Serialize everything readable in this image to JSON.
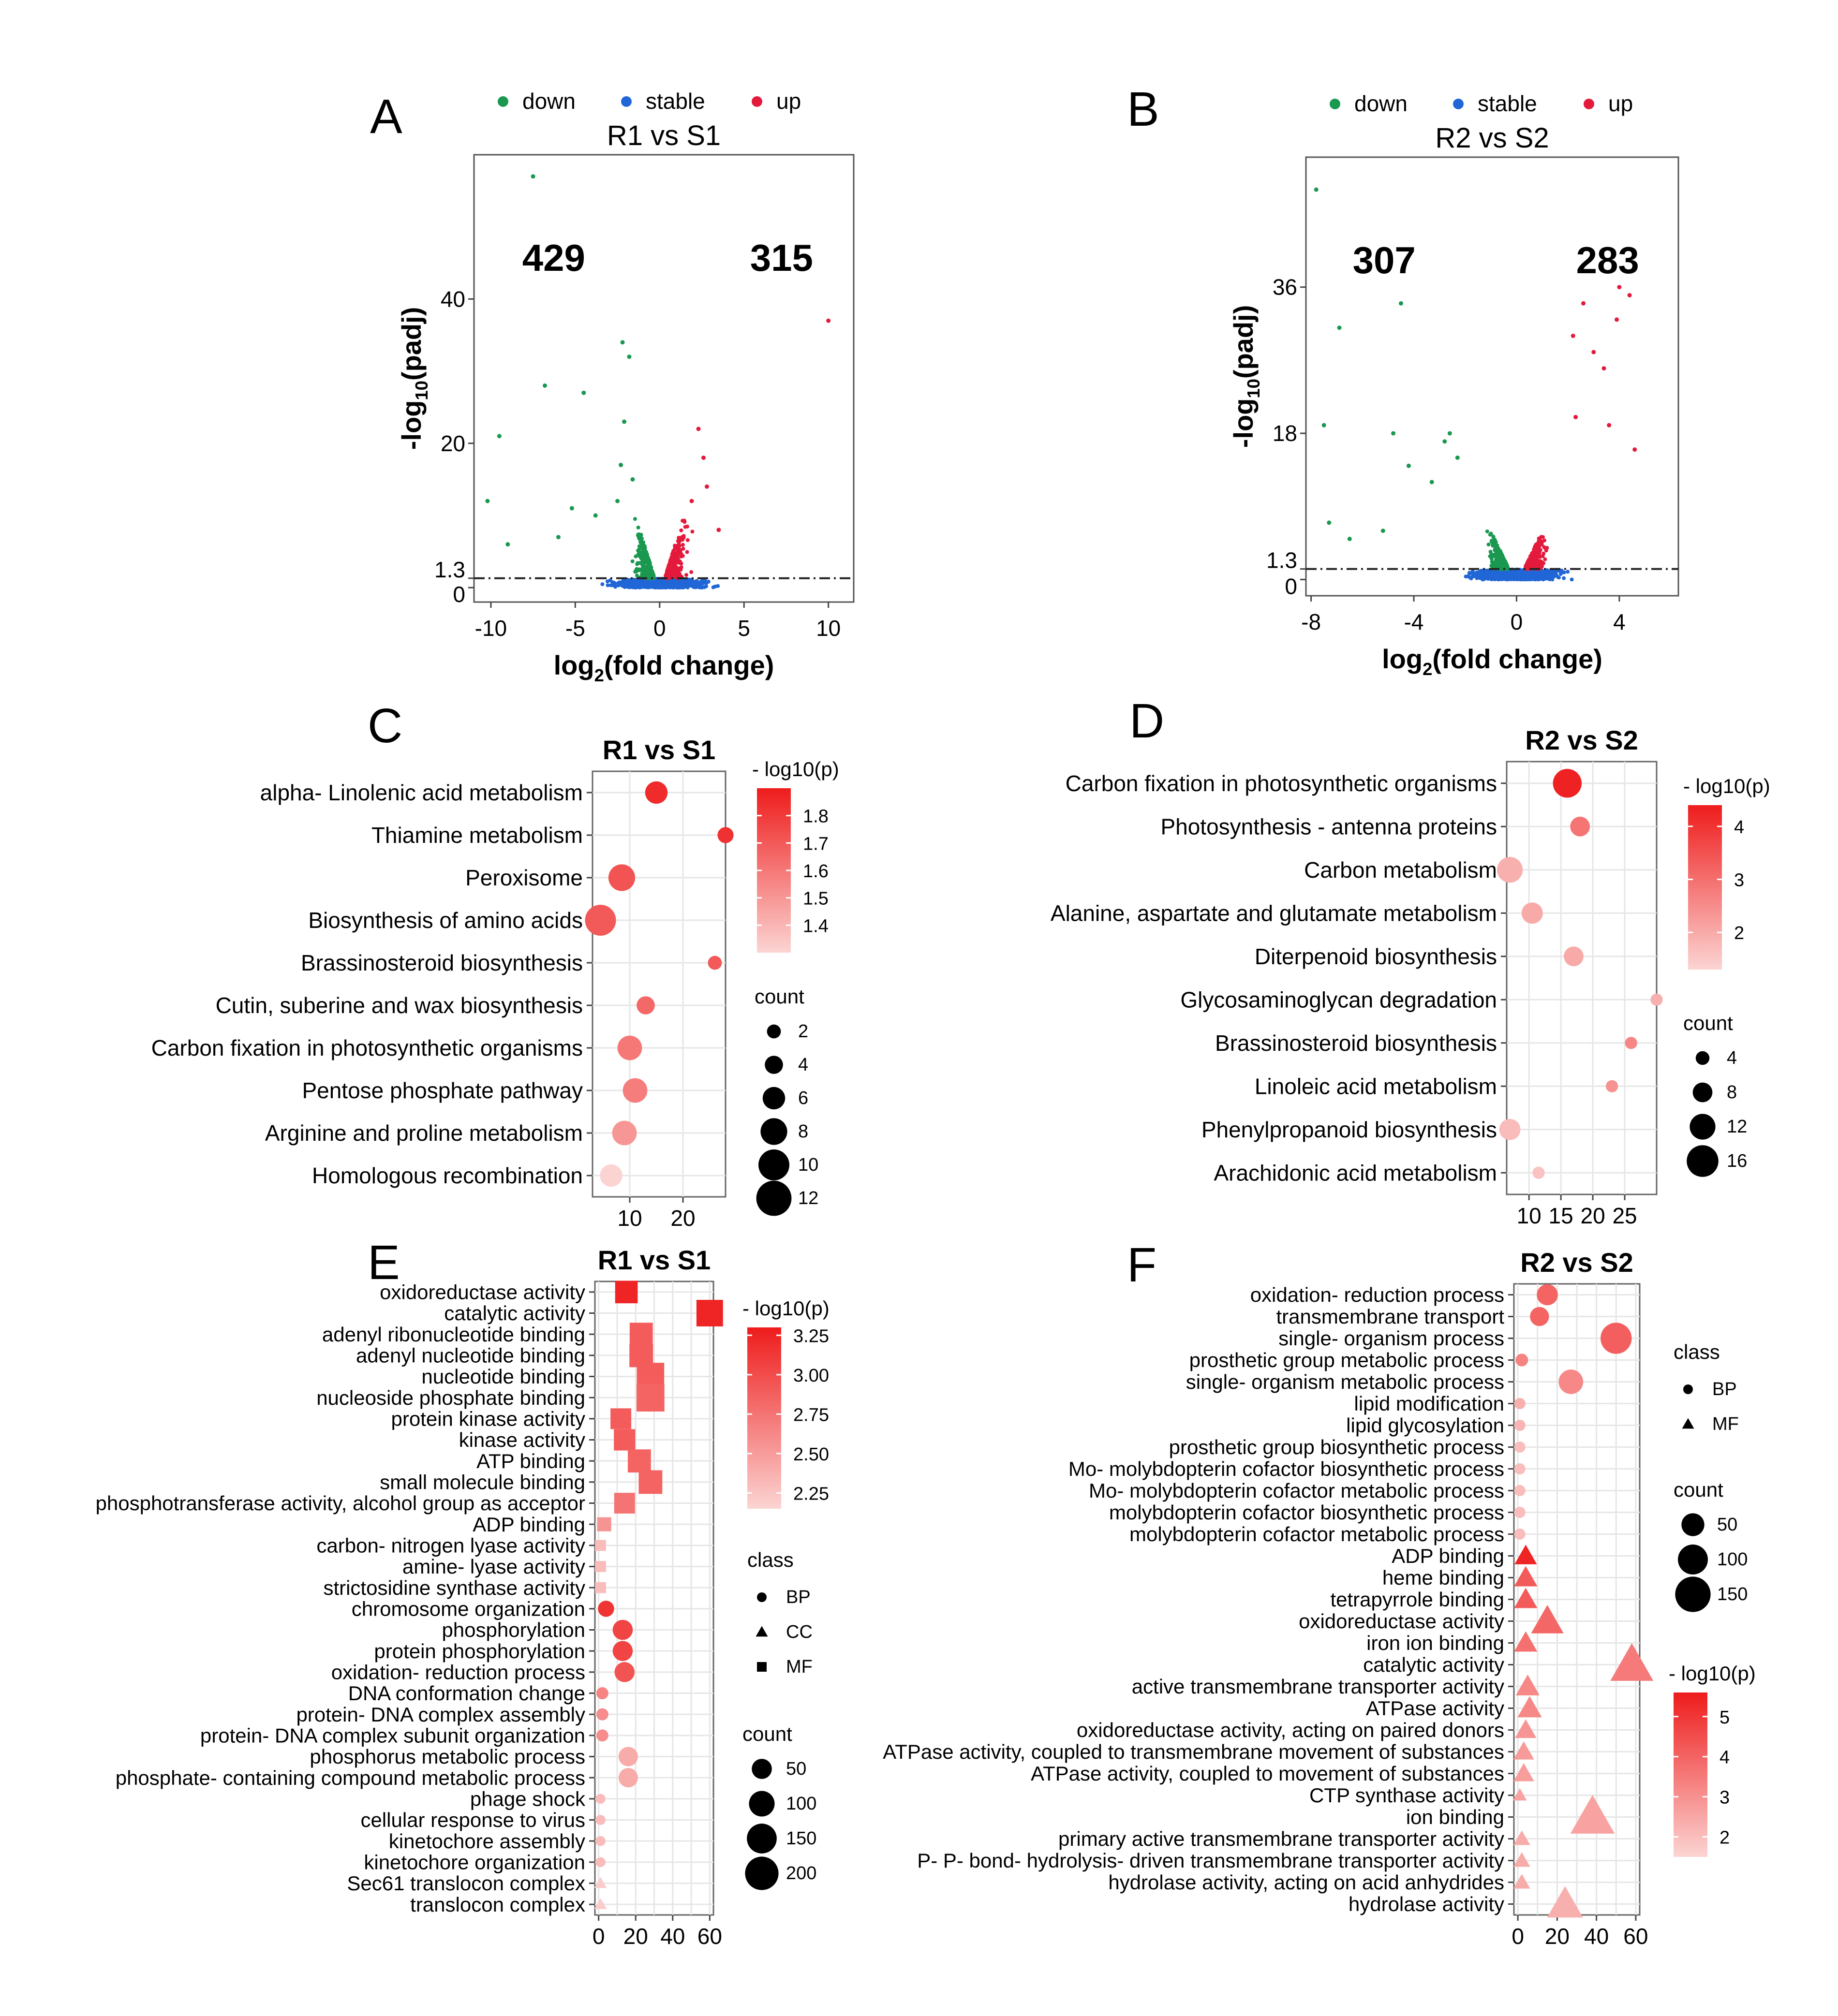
{
  "chart_data": [
    {
      "panel": "A",
      "type": "scatter",
      "title": "R1 vs S1",
      "xlabel": "log2(fold change)",
      "ylabel": "-log10(padj)",
      "xlim": [
        -11,
        11.5
      ],
      "ylim": [
        -2,
        60
      ],
      "x_ticks": [
        "-10",
        "-5",
        "0",
        "5",
        "10"
      ],
      "x_tick_values": [
        -10,
        -5,
        0,
        5,
        10
      ],
      "y_ticks": [
        "0",
        "1.3",
        "20",
        "40"
      ],
      "y_tick_values": [
        0,
        1.3,
        20,
        40
      ],
      "threshold": 1.3,
      "legend": [
        {
          "label": "down",
          "color": "#1a9850"
        },
        {
          "label": "stable",
          "color": "#2166d6"
        },
        {
          "label": "up",
          "color": "#e41a3c"
        }
      ],
      "annotations": [
        {
          "text": "429",
          "color": "#1a9850"
        },
        {
          "text": "315",
          "color": "#e41a3c"
        }
      ],
      "outliers": {
        "down": [
          [
            -7.5,
            57
          ],
          [
            -2.2,
            34
          ],
          [
            -1.8,
            32
          ],
          [
            -4.5,
            27
          ],
          [
            -6.8,
            28
          ],
          [
            -9.5,
            21
          ],
          [
            -2.1,
            23
          ],
          [
            -2.3,
            17
          ],
          [
            -10.2,
            12
          ],
          [
            -5.2,
            11
          ],
          [
            -3.8,
            10
          ],
          [
            -9,
            6
          ],
          [
            -6,
            7
          ],
          [
            -2.5,
            12
          ],
          [
            -1.6,
            15
          ]
        ],
        "up": [
          [
            10,
            37
          ],
          [
            2.3,
            22
          ],
          [
            2.6,
            18
          ],
          [
            2.8,
            14
          ],
          [
            1.9,
            12
          ],
          [
            3.5,
            8
          ]
        ]
      }
    },
    {
      "panel": "B",
      "type": "scatter",
      "title": "R2 vs S2",
      "xlabel": "log2(fold change)",
      "ylabel": "-log10(padj)",
      "xlim": [
        -8.2,
        6.3
      ],
      "ylim": [
        -2,
        52
      ],
      "x_ticks": [
        "-8",
        "-4",
        "0",
        "4"
      ],
      "x_tick_values": [
        -8,
        -4,
        0,
        4
      ],
      "y_ticks": [
        "0",
        "1.3",
        "18",
        "36"
      ],
      "y_tick_values": [
        0,
        1.3,
        18,
        36
      ],
      "threshold": 1.3,
      "legend": [
        {
          "label": "down",
          "color": "#1a9850"
        },
        {
          "label": "stable",
          "color": "#2166d6"
        },
        {
          "label": "up",
          "color": "#e41a3c"
        }
      ],
      "annotations": [
        {
          "text": "307",
          "color": "#1a9850"
        },
        {
          "text": "283",
          "color": "#e41a3c"
        }
      ],
      "outliers": {
        "down": [
          [
            -7.8,
            48
          ],
          [
            -6.9,
            31
          ],
          [
            -4.5,
            34
          ],
          [
            -7.5,
            19
          ],
          [
            -4.8,
            18
          ],
          [
            -4.2,
            14
          ],
          [
            -2.8,
            17
          ],
          [
            -2.6,
            18
          ],
          [
            -2.3,
            15
          ],
          [
            -3.3,
            12
          ],
          [
            -7.3,
            7
          ],
          [
            -6.5,
            5
          ],
          [
            -5.2,
            6
          ]
        ],
        "up": [
          [
            4,
            36
          ],
          [
            4.4,
            35
          ],
          [
            3.9,
            32
          ],
          [
            2.6,
            34
          ],
          [
            2.2,
            30
          ],
          [
            3,
            28
          ],
          [
            3.4,
            26
          ],
          [
            2.3,
            20
          ],
          [
            3.6,
            19
          ],
          [
            4.6,
            16
          ]
        ]
      }
    },
    {
      "panel": "C",
      "type": "bubble",
      "title": "R1 vs S1",
      "categories": [
        "alpha- Linolenic acid metabolism",
        "Thiamine metabolism",
        "Peroxisome",
        "Biosynthesis of amino acids",
        "Brassinosteroid biosynthesis",
        "Cutin, suberine and wax biosynthesis",
        "Carbon fixation in photosynthetic organisms",
        "Pentose phosphate pathway",
        "Arginine and proline metabolism",
        "Homologous recombination"
      ],
      "x": [
        15,
        28,
        8.5,
        4.5,
        26,
        13,
        10,
        11,
        9,
        6.5
      ],
      "count": [
        6,
        3,
        8,
        10,
        2,
        4,
        7,
        7,
        7,
        6
      ],
      "neglog10p": [
        1.85,
        1.83,
        1.72,
        1.7,
        1.7,
        1.65,
        1.6,
        1.58,
        1.5,
        1.3
      ],
      "xlim": [
        3,
        28
      ],
      "x_ticks": [
        "10",
        "20"
      ],
      "x_tick_values": [
        10,
        20
      ],
      "colorbar": {
        "title": "- log10(p)",
        "min": 1.3,
        "max": 1.9,
        "ticks": [
          "1.4",
          "1.5",
          "1.6",
          "1.7",
          "1.8"
        ],
        "tick_values": [
          1.4,
          1.5,
          1.6,
          1.7,
          1.8
        ]
      },
      "size_legend": {
        "title": "count",
        "values": [
          "2",
          "4",
          "6",
          "8",
          "10",
          "12"
        ]
      }
    },
    {
      "panel": "D",
      "type": "bubble",
      "title": "R2 vs S2",
      "categories": [
        "Carbon fixation in photosynthetic organisms",
        "Photosynthesis -  antenna proteins",
        "Carbon metabolism",
        "Alanine, aspartate and glutamate metabolism",
        "Diterpenoid biosynthesis",
        "Glycosaminoglycan degradation",
        "Brassinosteroid biosynthesis",
        "Linoleic acid metabolism",
        "Phenylpropanoid biosynthesis",
        "Arachidonic acid metabolism"
      ],
      "x": [
        16,
        18,
        7,
        10.5,
        17,
        30,
        26,
        23,
        7,
        11.5
      ],
      "count": [
        14,
        8,
        12,
        9,
        8,
        3,
        3,
        3,
        9,
        3
      ],
      "neglog10p": [
        4.3,
        2.9,
        1.9,
        2.0,
        2.0,
        1.9,
        2.6,
        2.4,
        1.7,
        1.6
      ],
      "xlim": [
        6.5,
        30
      ],
      "x_ticks": [
        "10",
        "15",
        "20",
        "25"
      ],
      "x_tick_values": [
        10,
        15,
        20,
        25
      ],
      "colorbar": {
        "title": "- log10(p)",
        "min": 1.3,
        "max": 4.4,
        "ticks": [
          "2",
          "3",
          "4"
        ],
        "tick_values": [
          2,
          3,
          4
        ]
      },
      "size_legend": {
        "title": "count",
        "values": [
          "4",
          "8",
          "12",
          "16"
        ]
      }
    },
    {
      "panel": "E",
      "type": "bubble",
      "title": "R1 vs S1",
      "categories": [
        "oxidoreductase activity",
        "catalytic activity",
        "adenyl ribonucleotide binding",
        "adenyl nucleotide binding",
        "nucleotide binding",
        "nucleoside phosphate binding",
        "protein kinase activity",
        "kinase activity",
        "ATP binding",
        "small molecule binding",
        "phosphotransferase activity, alcohol group as acceptor",
        "ADP binding",
        "carbon- nitrogen lyase activity",
        "amine- lyase activity",
        "strictosidine synthase activity",
        "chromosome organization",
        "phosphorylation",
        "protein phosphorylation",
        "oxidation- reduction process",
        "DNA conformation change",
        "protein- DNA complex assembly",
        "protein- DNA complex subunit organization",
        "phosphorus metabolic process",
        "phosphate- containing compound metabolic process",
        "phage shock",
        "cellular response to virus",
        "kinetochore assembly",
        "kinetochore organization",
        "Sec61 translocon complex",
        "translocon complex"
      ],
      "x": [
        15,
        60,
        23,
        23,
        28,
        28,
        12,
        14,
        22,
        28,
        14,
        3,
        1,
        1,
        1,
        4,
        13,
        13,
        14,
        2,
        2,
        2,
        16,
        16,
        1,
        1,
        1,
        1,
        1,
        1
      ],
      "count": [
        70,
        110,
        75,
        80,
        120,
        125,
        55,
        60,
        75,
        80,
        55,
        15,
        5,
        5,
        5,
        25,
        50,
        50,
        50,
        8,
        8,
        8,
        45,
        45,
        3,
        3,
        3,
        3,
        3,
        3
      ],
      "neglog10p": [
        3.25,
        3.25,
        2.9,
        2.9,
        2.9,
        2.85,
        2.9,
        2.9,
        2.85,
        2.85,
        2.75,
        2.55,
        2.3,
        2.3,
        2.3,
        3.15,
        3.05,
        3.05,
        2.95,
        2.65,
        2.6,
        2.6,
        2.4,
        2.4,
        2.3,
        2.3,
        2.3,
        2.3,
        2.2,
        2.2
      ],
      "class": [
        "MF",
        "MF",
        "MF",
        "MF",
        "MF",
        "MF",
        "MF",
        "MF",
        "MF",
        "MF",
        "MF",
        "MF",
        "MF",
        "MF",
        "MF",
        "BP",
        "BP",
        "BP",
        "BP",
        "BP",
        "BP",
        "BP",
        "BP",
        "BP",
        "BP",
        "BP",
        "BP",
        "BP",
        "CC",
        "CC"
      ],
      "xlim": [
        -2,
        62
      ],
      "x_ticks": [
        "0",
        "20",
        "40",
        "60"
      ],
      "x_tick_values": [
        0,
        20,
        40,
        60
      ],
      "colorbar": {
        "title": "- log10(p)",
        "min": 2.15,
        "max": 3.3,
        "ticks": [
          "2.25",
          "2.50",
          "2.75",
          "3.00",
          "3.25"
        ],
        "tick_values": [
          2.25,
          2.5,
          2.75,
          3.0,
          3.25
        ]
      },
      "class_legend": {
        "title": "class",
        "values": [
          "BP",
          "CC",
          "MF"
        ]
      },
      "size_legend": {
        "title": "count",
        "values": [
          "50",
          "100",
          "150",
          "200"
        ]
      }
    },
    {
      "panel": "F",
      "type": "bubble",
      "title": "R2 vs S2",
      "categories": [
        "oxidation- reduction process",
        "transmembrane transport",
        "single- organism process",
        "prosthetic group metabolic process",
        "single- organism metabolic process",
        "lipid modification",
        "lipid glycosylation",
        "prosthetic group biosynthetic process",
        "Mo- molybdopterin cofactor biosynthetic process",
        "Mo- molybdopterin cofactor metabolic process",
        "molybdopterin cofactor biosynthetic process",
        "molybdopterin cofactor metabolic process",
        "ADP binding",
        "heme binding",
        "tetrapyrrole binding",
        "oxidoreductase activity",
        "iron ion binding",
        "catalytic activity",
        "active transmembrane transporter activity",
        "ATPase activity",
        "oxidoreductase activity, acting on paired donors",
        "ATPase activity, coupled to transmembrane movement of substances",
        "ATPase activity, coupled to movement of substances",
        "CTP synthase activity",
        "ion binding",
        "primary active transmembrane transporter activity",
        "P- P- bond- hydrolysis- driven transmembrane transporter activity",
        "hydrolase activity, acting on acid anhydrides",
        "hydrolase activity"
      ],
      "x": [
        15,
        11,
        50,
        2,
        27,
        1,
        1,
        1,
        1,
        1,
        1,
        1,
        4,
        4,
        4,
        15,
        4,
        58,
        5,
        6,
        4,
        3,
        3,
        1,
        38,
        2,
        2,
        2,
        24
      ],
      "count": [
        40,
        30,
        110,
        8,
        60,
        5,
        5,
        5,
        5,
        5,
        5,
        5,
        25,
        28,
        28,
        70,
        28,
        140,
        30,
        32,
        22,
        20,
        20,
        5,
        150,
        10,
        10,
        10,
        90
      ],
      "neglog10p": [
        4.0,
        4.0,
        4.1,
        3.3,
        3.2,
        2.3,
        2.2,
        2.0,
        2.0,
        2.0,
        2.0,
        2.0,
        5.4,
        4.2,
        4.2,
        3.9,
        3.7,
        3.5,
        3.2,
        3.2,
        2.9,
        2.8,
        2.7,
        2.6,
        2.6,
        2.4,
        2.4,
        2.4,
        2.3
      ],
      "class": [
        "BP",
        "BP",
        "BP",
        "BP",
        "BP",
        "BP",
        "BP",
        "BP",
        "BP",
        "BP",
        "BP",
        "BP",
        "MF",
        "MF",
        "MF",
        "MF",
        "MF",
        "MF",
        "MF",
        "MF",
        "MF",
        "MF",
        "MF",
        "MF",
        "MF",
        "MF",
        "MF",
        "MF",
        "MF"
      ],
      "xlim": [
        -2,
        62
      ],
      "x_ticks": [
        "0",
        "20",
        "40",
        "60"
      ],
      "x_tick_values": [
        0,
        20,
        40,
        60
      ],
      "colorbar": {
        "title": "- log10(p)",
        "min": 1.5,
        "max": 5.6,
        "ticks": [
          "2",
          "3",
          "4",
          "5"
        ],
        "tick_values": [
          2,
          3,
          4,
          5
        ]
      },
      "class_legend": {
        "title": "class",
        "values": [
          "BP",
          "MF"
        ]
      },
      "size_legend": {
        "title": "count",
        "values": [
          "50",
          "100",
          "150"
        ]
      }
    }
  ]
}
